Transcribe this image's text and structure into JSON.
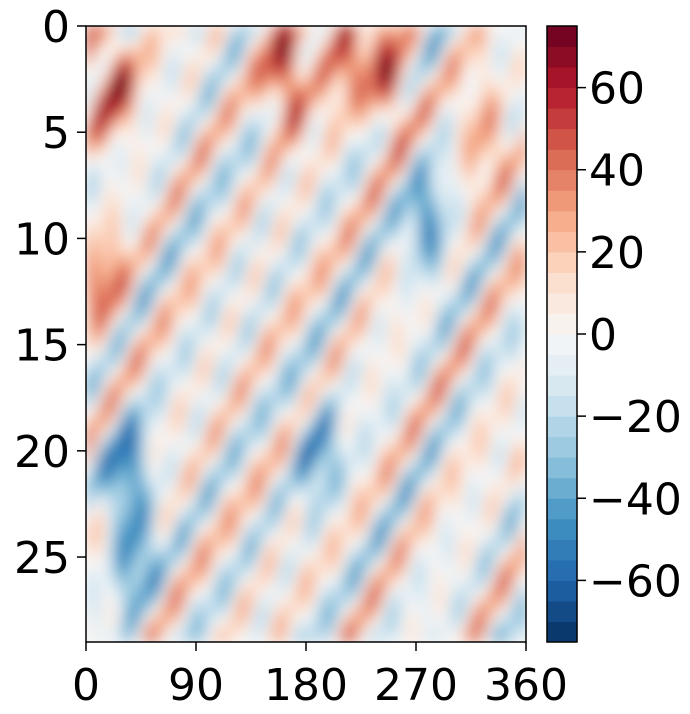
{
  "chart_data": {
    "type": "heatmap",
    "title": "",
    "xlabel": "",
    "ylabel": "",
    "x_ticks": [
      {
        "value": 0,
        "label": "0"
      },
      {
        "value": 90,
        "label": "90"
      },
      {
        "value": 180,
        "label": "180"
      },
      {
        "value": 270,
        "label": "270"
      },
      {
        "value": 360,
        "label": "360"
      }
    ],
    "y_ticks": [
      {
        "value": 0,
        "label": "0"
      },
      {
        "value": 5,
        "label": "5"
      },
      {
        "value": 10,
        "label": "10"
      },
      {
        "value": 15,
        "label": "15"
      },
      {
        "value": 20,
        "label": "20"
      },
      {
        "value": 25,
        "label": "25"
      }
    ],
    "xlim": [
      0,
      360
    ],
    "ylim": [
      0,
      29
    ],
    "y_axis_inverted": true,
    "colorbar": {
      "colormap": "RdBu_r (diverging red-blue)",
      "range": [
        -75,
        75
      ],
      "levels": 30,
      "ticks": [
        {
          "value": 60,
          "label": "60"
        },
        {
          "value": 40,
          "label": "40"
        },
        {
          "value": 20,
          "label": "20"
        },
        {
          "value": 0,
          "label": "0"
        },
        {
          "value": -20,
          "label": "−20"
        },
        {
          "value": -40,
          "label": "−40"
        },
        {
          "value": -60,
          "label": "−60"
        }
      ]
    },
    "description": "Filled contour of a field vs longitude (0-360) and time (0-29, increasing downward); diagonal alternating red/blue bands tilting down-left with strong red maxima (~60-70) near rows 0-5 around x~20, ~165, ~250 and blue minima (~-60) near x~30 rows 18-25",
    "features": [
      {
        "x": 22,
        "y": 2.5,
        "value": 65
      },
      {
        "x": 165,
        "y": 2.5,
        "value": 70
      },
      {
        "x": 248,
        "y": 2.5,
        "value": 60
      },
      {
        "x": 210,
        "y": 1.0,
        "value": 55
      },
      {
        "x": 35,
        "y": 21.0,
        "value": -55
      },
      {
        "x": 40,
        "y": 25.0,
        "value": -50
      },
      {
        "x": 190,
        "y": 20.0,
        "value": -50
      },
      {
        "x": 280,
        "y": 9.5,
        "value": -55
      },
      {
        "x": 15,
        "y": 12.0,
        "value": 45
      },
      {
        "x": 325,
        "y": 5.0,
        "value": 40
      }
    ]
  }
}
